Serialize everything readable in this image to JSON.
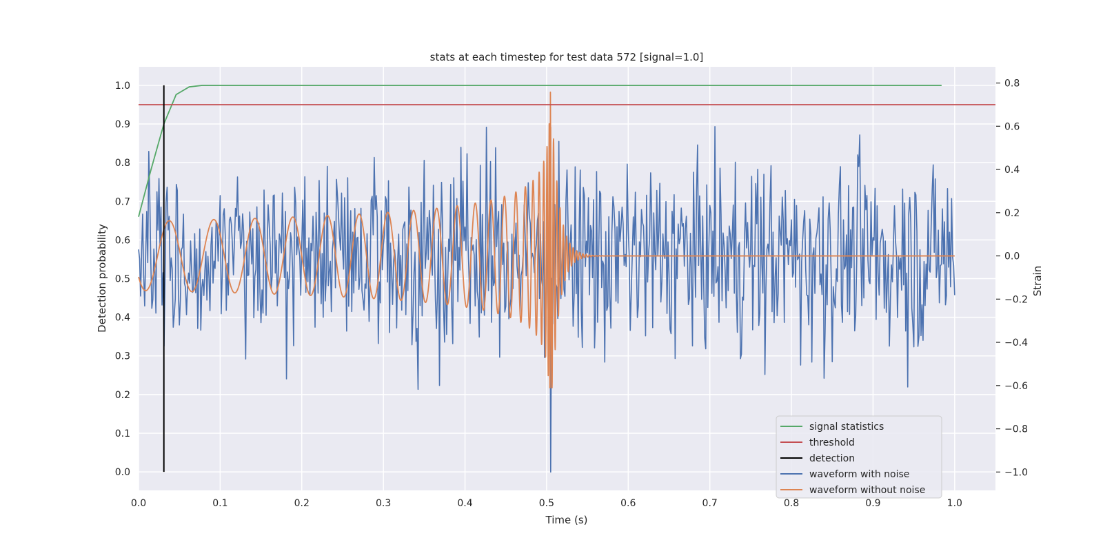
{
  "chart_data": {
    "type": "line",
    "title": "stats at each timestep for test data 572 [signal=1.0]",
    "xlabel": "Time (s)",
    "ylabel_left": "Detection probability",
    "ylabel_right": "Strain",
    "xlim": [
      0.0,
      1.05
    ],
    "ylim_left": [
      -0.048,
      1.048
    ],
    "ylim_right": [
      -1.085,
      0.875
    ],
    "x_ticks": [
      "0.0",
      "0.1",
      "0.2",
      "0.3",
      "0.4",
      "0.5",
      "0.6",
      "0.7",
      "0.8",
      "0.9",
      "1.0"
    ],
    "y_left_ticks": [
      "0.0",
      "0.1",
      "0.2",
      "0.3",
      "0.4",
      "0.5",
      "0.6",
      "0.7",
      "0.8",
      "0.9",
      "1.0"
    ],
    "y_right_ticks": [
      "−1.0",
      "−0.8",
      "−0.6",
      "−0.4",
      "−0.2",
      "0.0",
      "0.2",
      "0.4",
      "0.6",
      "0.8"
    ],
    "grid": true,
    "legend_position": "bottom-right",
    "colors": {
      "signal_statistics": "#55a868",
      "threshold": "#c44e52",
      "detection": "#000000",
      "waveform_with_noise": "#4c72b0",
      "waveform_without_noise": "#dd8452",
      "background": "#eaeaf2",
      "grid": "#ffffff"
    },
    "series": [
      {
        "name": "signal statistics",
        "axis": "left",
        "x": [
          0.0,
          0.015,
          0.031,
          0.046,
          0.062,
          0.078,
          0.1,
          0.2,
          0.3,
          0.4,
          0.5,
          0.6,
          0.7,
          0.8,
          0.9,
          0.984
        ],
        "y": [
          0.66,
          0.78,
          0.9,
          0.976,
          0.996,
          1.0,
          1.0,
          1.0,
          1.0,
          1.0,
          1.0,
          1.0,
          1.0,
          1.0,
          1.0,
          1.0
        ]
      },
      {
        "name": "threshold",
        "axis": "left",
        "x": [
          0.0,
          1.05
        ],
        "y": [
          0.95,
          0.95
        ]
      },
      {
        "name": "detection",
        "axis": "left",
        "x": [
          0.031,
          0.031
        ],
        "y": [
          0.0,
          1.0
        ]
      },
      {
        "name": "waveform with noise",
        "axis": "right",
        "x_range": [
          0.0,
          1.0
        ],
        "samples": 800,
        "amplitude_std": 0.22,
        "min": -1.0,
        "max": 0.73
      },
      {
        "name": "waveform without noise",
        "axis": "right",
        "x_range": [
          0.0,
          1.0
        ],
        "merger_time": 0.505,
        "amplitude_start": 0.16,
        "amplitude_peak": 0.8,
        "min": -0.61
      }
    ],
    "legend": [
      "signal statistics",
      "threshold",
      "detection",
      "waveform with noise",
      "waveform without noise"
    ]
  }
}
